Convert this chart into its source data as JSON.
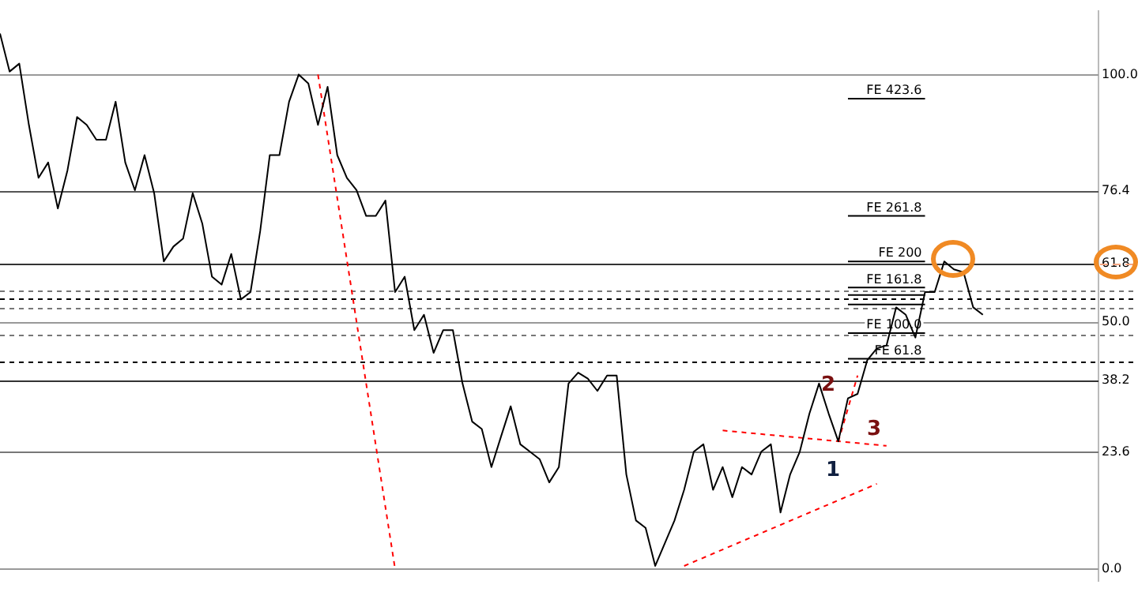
{
  "chart_data": {
    "type": "line",
    "ylim": [
      -2.5,
      112.9
    ],
    "yticks": [
      {
        "value": 0,
        "label": "0.0"
      },
      23.6,
      38.2,
      {
        "value": 50,
        "label": "50.0"
      },
      61.8,
      76.4,
      {
        "value": 100,
        "label": "100.0"
      }
    ],
    "tick_labels": "y",
    "grid": false,
    "legend": false,
    "marker": "none",
    "categories": [
      null,
      null,
      null,
      null,
      null,
      null,
      null,
      null,
      null,
      null,
      null,
      null,
      null,
      null,
      null,
      null,
      null,
      null,
      null,
      null,
      null,
      null,
      null,
      null,
      null,
      null,
      null,
      null,
      null,
      null,
      null,
      null,
      null,
      null,
      null,
      null,
      null,
      null,
      null,
      null,
      null,
      null,
      null,
      null,
      null,
      null,
      null,
      null,
      null,
      null,
      null,
      null,
      null,
      null,
      null,
      null,
      null,
      null,
      null,
      null,
      null,
      null,
      null,
      null,
      null,
      null,
      null,
      null,
      null,
      null,
      null,
      null,
      null,
      null,
      null,
      null,
      null,
      null,
      null,
      null,
      null,
      null,
      null,
      null,
      null,
      null,
      null,
      null,
      null,
      null,
      null,
      null,
      null,
      null,
      null,
      null,
      null,
      null,
      null,
      null,
      null,
      null,
      null,
      null,
      null,
      null,
      null,
      null,
      null,
      null,
      null,
      null,
      null,
      null,
      null
    ],
    "annotations": [
      "1",
      "2",
      "3"
    ],
    "ref_lines": [
      {
        "axis": "y",
        "value": 61.8,
        "color": "#f4a582",
        "line_style": "dashed"
      },
      {
        "axis": "y",
        "value": 100,
        "color": "#999999",
        "line_style": "solid"
      },
      {
        "axis": "y",
        "value": 76.4,
        "color": "#555555",
        "line_style": "solid"
      },
      {
        "axis": "y",
        "value": 61.8,
        "color": "#333333",
        "line_style": "solid"
      },
      {
        "axis": "y",
        "value": 50,
        "color": "#999999",
        "line_style": "solid"
      },
      {
        "axis": "y",
        "value": 38.2,
        "color": "#333333",
        "line_style": "solid"
      },
      {
        "axis": "y",
        "value": 23.6,
        "color": "#777777",
        "line_style": "solid"
      },
      {
        "axis": "y",
        "value": 0,
        "color": "#999999",
        "line_style": "solid"
      },
      {
        "axis": "y",
        "value": 56.3,
        "color": "#777777",
        "line_style": "dotted"
      },
      {
        "axis": "y",
        "value": 54.8,
        "color": "#000000",
        "line_style": "dotted"
      },
      {
        "axis": "y",
        "value": 52.9,
        "color": "#777777",
        "line_style": "dotted"
      },
      {
        "axis": "y",
        "value": 47.4,
        "color": "#777777",
        "line_style": "dotted"
      },
      {
        "axis": "y",
        "value": 41.8,
        "color": "#000000",
        "line_style": "dotted"
      }
    ],
    "series": [
      {
        "color": "#000000",
        "line_style": "solid",
        "values": [
          108.3,
          100.6,
          102.2,
          89.8,
          79.1,
          82.2,
          72.9,
          80.6,
          91.4,
          89.8,
          86.8,
          86.8,
          94.5,
          82.2,
          76.6,
          83.7,
          76.0,
          62.2,
          65.2,
          66.8,
          76.0,
          69.8,
          59.1,
          57.5,
          63.7,
          54.5,
          56.0,
          68.3,
          83.7,
          83.7,
          94.5,
          100,
          98.2,
          89.8,
          97.5,
          83.7,
          79.1,
          76.6,
          71.4,
          71.4,
          74.5,
          56.0,
          59.1,
          48.3,
          51.4,
          43.7,
          48.3,
          48.3,
          37.5,
          29.8,
          28.3,
          20.6,
          26.8,
          32.9,
          25.2,
          23.7,
          22.2,
          17.5,
          20.6,
          37.5,
          39.7,
          38.5,
          36.0,
          39.1,
          39.1,
          19.1,
          9.8,
          8.3,
          0.6,
          5.2,
          9.8,
          16.0,
          23.7,
          25.2,
          16.0,
          20.6,
          14.5,
          20.6,
          19.1,
          23.7,
          25.2,
          11.4,
          19.1,
          23.7,
          31.4,
          37.5,
          31.4,
          25.8,
          34.5,
          35.4,
          42.2,
          44.6,
          45.2,
          52.9,
          51.4,
          46.8,
          56.0,
          56.0,
          62.2,
          60.6,
          60.0,
          52.9,
          51.4,
          null,
          null,
          null,
          null,
          null,
          null,
          null,
          null,
          null,
          null,
          null,
          null
        ]
      },
      {
        "name": "FE 423.6",
        "color": "#000000",
        "line_style": "solid",
        "values": [
          null,
          null,
          null,
          null,
          null,
          null,
          null,
          null,
          null,
          null,
          null,
          null,
          null,
          null,
          null,
          null,
          null,
          null,
          null,
          null,
          null,
          null,
          null,
          null,
          null,
          null,
          null,
          null,
          null,
          null,
          null,
          null,
          null,
          null,
          null,
          null,
          null,
          null,
          null,
          null,
          null,
          null,
          null,
          null,
          null,
          null,
          null,
          null,
          null,
          null,
          null,
          null,
          null,
          null,
          null,
          null,
          null,
          null,
          null,
          null,
          null,
          null,
          null,
          null,
          null,
          null,
          null,
          null,
          null,
          null,
          null,
          null,
          null,
          null,
          null,
          null,
          null,
          null,
          null,
          null,
          null,
          null,
          null,
          null,
          null,
          null,
          null,
          null,
          95.1,
          null,
          null,
          null,
          null,
          null,
          null,
          null,
          95.1,
          null,
          null,
          null,
          null,
          null,
          null,
          null,
          null,
          null,
          null,
          null,
          null,
          null,
          null,
          null,
          null,
          null,
          null
        ]
      },
      {
        "name": "FE 261.8",
        "color": "#000000",
        "line_style": "solid",
        "values": [
          null,
          null,
          null,
          null,
          null,
          null,
          null,
          null,
          null,
          null,
          null,
          null,
          null,
          null,
          null,
          null,
          null,
          null,
          null,
          null,
          null,
          null,
          null,
          null,
          null,
          null,
          null,
          null,
          null,
          null,
          null,
          null,
          null,
          null,
          null,
          null,
          null,
          null,
          null,
          null,
          null,
          null,
          null,
          null,
          null,
          null,
          null,
          null,
          null,
          null,
          null,
          null,
          null,
          null,
          null,
          null,
          null,
          null,
          null,
          null,
          null,
          null,
          null,
          null,
          null,
          null,
          null,
          null,
          null,
          null,
          null,
          null,
          null,
          null,
          null,
          null,
          null,
          null,
          null,
          null,
          null,
          null,
          null,
          null,
          null,
          null,
          null,
          null,
          71.4,
          null,
          null,
          null,
          null,
          null,
          null,
          null,
          71.4,
          null,
          null,
          null,
          null,
          null,
          null,
          null,
          null,
          null,
          null,
          null,
          null,
          null,
          null,
          null,
          null,
          null,
          null
        ]
      },
      {
        "name": "FE 200",
        "color": "#000000",
        "line_style": "solid",
        "values": [
          null,
          null,
          null,
          null,
          null,
          null,
          null,
          null,
          null,
          null,
          null,
          null,
          null,
          null,
          null,
          null,
          null,
          null,
          null,
          null,
          null,
          null,
          null,
          null,
          null,
          null,
          null,
          null,
          null,
          null,
          null,
          null,
          null,
          null,
          null,
          null,
          null,
          null,
          null,
          null,
          null,
          null,
          null,
          null,
          null,
          null,
          null,
          null,
          null,
          null,
          null,
          null,
          null,
          null,
          null,
          null,
          null,
          null,
          null,
          null,
          null,
          null,
          null,
          null,
          null,
          null,
          null,
          null,
          null,
          null,
          null,
          null,
          null,
          null,
          null,
          null,
          null,
          null,
          null,
          null,
          null,
          null,
          null,
          null,
          null,
          null,
          null,
          null,
          62.2,
          null,
          null,
          null,
          null,
          null,
          null,
          null,
          62.2,
          null,
          null,
          null,
          null,
          null,
          null,
          null,
          null,
          null,
          null,
          null,
          null,
          null,
          null,
          null,
          null,
          null,
          null
        ]
      },
      {
        "name": "FE 161.8",
        "color": "#000000",
        "line_style": "solid",
        "values": [
          null,
          null,
          null,
          null,
          null,
          null,
          null,
          null,
          null,
          null,
          null,
          null,
          null,
          null,
          null,
          null,
          null,
          null,
          null,
          null,
          null,
          null,
          null,
          null,
          null,
          null,
          null,
          null,
          null,
          null,
          null,
          null,
          null,
          null,
          null,
          null,
          null,
          null,
          null,
          null,
          null,
          null,
          null,
          null,
          null,
          null,
          null,
          null,
          null,
          null,
          null,
          null,
          null,
          null,
          null,
          null,
          null,
          null,
          null,
          null,
          null,
          null,
          null,
          null,
          null,
          null,
          null,
          null,
          null,
          null,
          null,
          null,
          null,
          null,
          null,
          null,
          null,
          null,
          null,
          null,
          null,
          null,
          null,
          null,
          null,
          null,
          null,
          null,
          56.9,
          null,
          null,
          null,
          null,
          null,
          null,
          null,
          56.9,
          null,
          null,
          null,
          null,
          null,
          null,
          null,
          null,
          null,
          null,
          null,
          null,
          null,
          null,
          null,
          null,
          null,
          null
        ]
      },
      {
        "color": "#000000",
        "line_style": "solid",
        "values": [
          null,
          null,
          null,
          null,
          null,
          null,
          null,
          null,
          null,
          null,
          null,
          null,
          null,
          null,
          null,
          null,
          null,
          null,
          null,
          null,
          null,
          null,
          null,
          null,
          null,
          null,
          null,
          null,
          null,
          null,
          null,
          null,
          null,
          null,
          null,
          null,
          null,
          null,
          null,
          null,
          null,
          null,
          null,
          null,
          null,
          null,
          null,
          null,
          null,
          null,
          null,
          null,
          null,
          null,
          null,
          null,
          null,
          null,
          null,
          null,
          null,
          null,
          null,
          null,
          null,
          null,
          null,
          null,
          null,
          null,
          null,
          null,
          null,
          null,
          null,
          null,
          null,
          null,
          null,
          null,
          null,
          null,
          null,
          null,
          null,
          null,
          null,
          null,
          55.4,
          null,
          null,
          null,
          null,
          null,
          null,
          null,
          55.4,
          null,
          null,
          null,
          null,
          null,
          null,
          null,
          null,
          null,
          null,
          null,
          null,
          null,
          null,
          null,
          null,
          null,
          null
        ]
      },
      {
        "color": "#000000",
        "line_style": "solid",
        "values": [
          null,
          null,
          null,
          null,
          null,
          null,
          null,
          null,
          null,
          null,
          null,
          null,
          null,
          null,
          null,
          null,
          null,
          null,
          null,
          null,
          null,
          null,
          null,
          null,
          null,
          null,
          null,
          null,
          null,
          null,
          null,
          null,
          null,
          null,
          null,
          null,
          null,
          null,
          null,
          null,
          null,
          null,
          null,
          null,
          null,
          null,
          null,
          null,
          null,
          null,
          null,
          null,
          null,
          null,
          null,
          null,
          null,
          null,
          null,
          null,
          null,
          null,
          null,
          null,
          null,
          null,
          null,
          null,
          null,
          null,
          null,
          null,
          null,
          null,
          null,
          null,
          null,
          null,
          null,
          null,
          null,
          null,
          null,
          null,
          null,
          null,
          null,
          null,
          53.5,
          null,
          null,
          null,
          null,
          null,
          null,
          null,
          53.5,
          null,
          null,
          null,
          null,
          null,
          null,
          null,
          null,
          null,
          null,
          null,
          null,
          null,
          null,
          null,
          null,
          null,
          null
        ]
      },
      {
        "name": "FE 100.0",
        "color": "#000000",
        "line_style": "solid",
        "values": [
          null,
          null,
          null,
          null,
          null,
          null,
          null,
          null,
          null,
          null,
          null,
          null,
          null,
          null,
          null,
          null,
          null,
          null,
          null,
          null,
          null,
          null,
          null,
          null,
          null,
          null,
          null,
          null,
          null,
          null,
          null,
          null,
          null,
          null,
          null,
          null,
          null,
          null,
          null,
          null,
          null,
          null,
          null,
          null,
          null,
          null,
          null,
          null,
          null,
          null,
          null,
          null,
          null,
          null,
          null,
          null,
          null,
          null,
          null,
          null,
          null,
          null,
          null,
          null,
          null,
          null,
          null,
          null,
          null,
          null,
          null,
          null,
          null,
          null,
          null,
          null,
          null,
          null,
          null,
          null,
          null,
          null,
          null,
          null,
          null,
          null,
          null,
          null,
          47.7,
          null,
          null,
          null,
          null,
          null,
          null,
          null,
          47.7,
          null,
          null,
          null,
          null,
          null,
          null,
          null,
          null,
          null,
          null,
          null,
          null,
          null,
          null,
          null,
          null,
          null,
          null
        ]
      },
      {
        "name": "FE 61.8",
        "color": "#000000",
        "line_style": "solid",
        "values": [
          null,
          null,
          null,
          null,
          null,
          null,
          null,
          null,
          null,
          null,
          null,
          null,
          null,
          null,
          null,
          null,
          null,
          null,
          null,
          null,
          null,
          null,
          null,
          null,
          null,
          null,
          null,
          null,
          null,
          null,
          null,
          null,
          null,
          null,
          null,
          null,
          null,
          null,
          null,
          null,
          null,
          null,
          null,
          null,
          null,
          null,
          null,
          null,
          null,
          null,
          null,
          null,
          null,
          null,
          null,
          null,
          null,
          null,
          null,
          null,
          null,
          null,
          null,
          null,
          null,
          null,
          null,
          null,
          null,
          null,
          null,
          null,
          null,
          null,
          null,
          null,
          null,
          null,
          null,
          null,
          null,
          null,
          null,
          null,
          null,
          null,
          null,
          null,
          42.5,
          null,
          null,
          null,
          null,
          null,
          null,
          null,
          42.5,
          null,
          null,
          null,
          null,
          null,
          null,
          null,
          null,
          null,
          null,
          null,
          null,
          null,
          null,
          null,
          null,
          null,
          null
        ]
      },
      {
        "color": "#ff0000",
        "line_style": "dotted",
        "values": [
          null,
          null,
          null,
          null,
          null,
          null,
          null,
          null,
          null,
          null,
          null,
          null,
          null,
          null,
          null,
          null,
          null,
          null,
          null,
          null,
          null,
          null,
          null,
          null,
          null,
          null,
          null,
          null,
          null,
          null,
          null,
          null,
          null,
          100,
          null,
          null,
          null,
          null,
          null,
          null,
          null,
          0,
          null,
          null,
          null,
          null,
          null,
          null,
          null,
          null,
          null,
          null,
          null,
          null,
          null,
          null,
          null,
          null,
          null,
          null,
          null,
          null,
          null,
          null,
          null,
          null,
          null,
          null,
          null,
          null,
          null,
          null,
          null,
          null,
          null,
          null,
          null,
          null,
          null,
          null,
          null,
          null,
          null,
          null,
          null,
          null,
          null,
          null,
          null,
          null,
          null,
          null,
          null,
          null,
          null,
          null,
          null,
          null,
          null,
          null,
          null,
          null,
          null,
          null,
          null,
          null,
          null,
          null,
          null,
          null,
          null,
          null,
          null,
          null,
          null
        ]
      },
      {
        "color": "#ff0000",
        "line_style": "dotted",
        "values": [
          null,
          null,
          null,
          null,
          null,
          null,
          null,
          null,
          null,
          null,
          null,
          null,
          null,
          null,
          null,
          null,
          null,
          null,
          null,
          null,
          null,
          null,
          null,
          null,
          null,
          null,
          null,
          null,
          null,
          null,
          null,
          null,
          null,
          null,
          null,
          null,
          null,
          null,
          null,
          null,
          null,
          null,
          null,
          null,
          null,
          null,
          null,
          null,
          null,
          null,
          null,
          null,
          null,
          null,
          null,
          null,
          null,
          null,
          null,
          null,
          null,
          null,
          null,
          null,
          null,
          null,
          null,
          null,
          null,
          null,
          null,
          null,
          null,
          null,
          null,
          28.0,
          null,
          null,
          null,
          null,
          null,
          null,
          null,
          null,
          null,
          null,
          null,
          null,
          null,
          null,
          null,
          null,
          24.9,
          null,
          null,
          null,
          null,
          null,
          null,
          null,
          null,
          null,
          null,
          null,
          null,
          null,
          null,
          null,
          null,
          null,
          null,
          null,
          null,
          null,
          null
        ]
      },
      {
        "color": "#ff0000",
        "line_style": "dotted",
        "values": [
          null,
          null,
          null,
          null,
          null,
          null,
          null,
          null,
          null,
          null,
          null,
          null,
          null,
          null,
          null,
          null,
          null,
          null,
          null,
          null,
          null,
          null,
          null,
          null,
          null,
          null,
          null,
          null,
          null,
          null,
          null,
          null,
          null,
          null,
          null,
          null,
          null,
          null,
          null,
          null,
          null,
          null,
          null,
          null,
          null,
          null,
          null,
          null,
          null,
          null,
          null,
          null,
          null,
          null,
          null,
          null,
          null,
          null,
          null,
          null,
          null,
          null,
          null,
          null,
          null,
          null,
          null,
          null,
          null,
          null,
          null,
          0.6,
          null,
          null,
          null,
          null,
          null,
          null,
          null,
          null,
          null,
          null,
          null,
          null,
          null,
          null,
          null,
          null,
          null,
          null,
          null,
          17.2,
          null,
          null,
          null,
          null,
          null,
          null,
          null,
          null,
          null,
          null,
          null,
          null,
          null,
          null,
          null,
          null,
          null,
          null,
          null,
          null,
          null,
          null,
          null
        ]
      },
      {
        "color": "#ff0000",
        "line_style": "dotted",
        "values": [
          null,
          null,
          null,
          null,
          null,
          null,
          null,
          null,
          null,
          null,
          null,
          null,
          null,
          null,
          null,
          null,
          null,
          null,
          null,
          null,
          null,
          null,
          null,
          null,
          null,
          null,
          null,
          null,
          null,
          null,
          null,
          null,
          null,
          null,
          null,
          null,
          null,
          null,
          null,
          null,
          null,
          null,
          null,
          null,
          null,
          null,
          null,
          null,
          null,
          null,
          null,
          null,
          null,
          null,
          null,
          null,
          null,
          null,
          null,
          null,
          null,
          null,
          null,
          null,
          null,
          null,
          null,
          null,
          null,
          null,
          null,
          null,
          null,
          null,
          null,
          null,
          null,
          null,
          null,
          null,
          null,
          null,
          null,
          null,
          null,
          null,
          null,
          25.8,
          null,
          39.1,
          null,
          null,
          null,
          null,
          null,
          null,
          null,
          null,
          null,
          null,
          null,
          null,
          null,
          null,
          null,
          null,
          null,
          null,
          null,
          null,
          null,
          null,
          null,
          null,
          null
        ]
      }
    ]
  }
}
